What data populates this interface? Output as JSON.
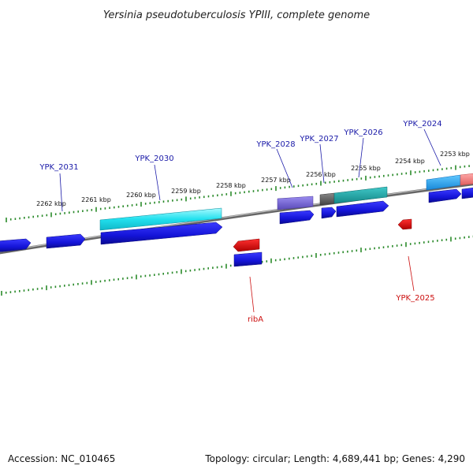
{
  "title": "Yersinia pseudotuberculosis YPIII, complete genome",
  "footer": {
    "accession": "Accession: NC_010465",
    "summary": "Topology: circular; Length: 4,689,441 bp; Genes: 4,290"
  },
  "tick_labels": [
    "2262 kbp",
    "2261 kbp",
    "2260 kbp",
    "2259 kbp",
    "2258 kbp",
    "2257 kbp",
    "2256 kbp",
    "2255 kbp",
    "2254 kbp",
    "2253 kbp"
  ],
  "genes": {
    "ypk_2031": "YPK_2031",
    "ypk_2030": "YPK_2030",
    "ypk_2028": "YPK_2028",
    "ypk_2027": "YPK_2027",
    "ypk_2026": "YPK_2026",
    "ypk_2024": "YPK_2024",
    "riba": "ribA",
    "ypk_2025": "YPK_2025"
  },
  "colors": {
    "forward_label": "#1a1aa8",
    "reverse_label": "#cc1111",
    "cds_blue": "#1414d8",
    "cds_red": "#e01010",
    "cyan": "#22e0ee",
    "teal": "#20a8a8",
    "purple": "#7a6ad8",
    "grey": "#666666",
    "light_blue": "#2aa8f0",
    "pink": "#f08080",
    "tick": "#2a8a2a",
    "backbone": "#777777"
  }
}
